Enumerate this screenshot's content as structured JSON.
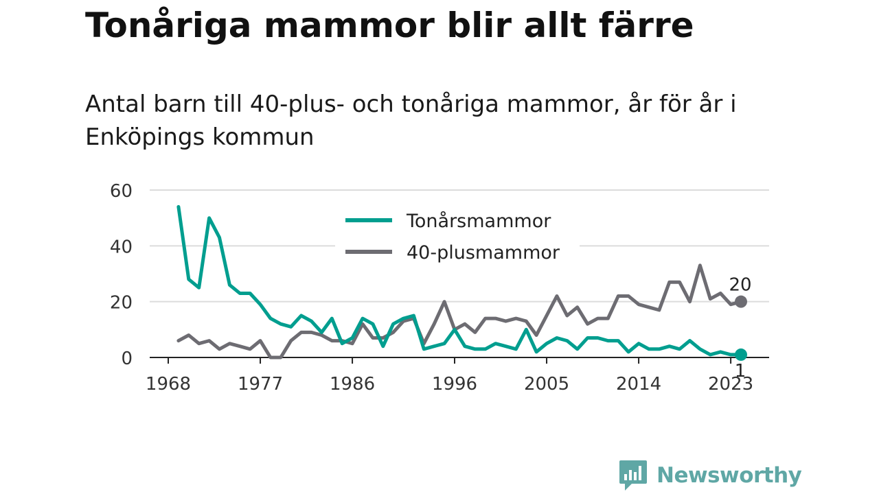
{
  "header": {
    "title": "Tonåriga mammor blir allt färre",
    "subtitle": "Antal barn till 40-plus- och tonåriga mammor, år för år i Enköpings kommun"
  },
  "brand": {
    "name": "Newsworthy",
    "icon": "newsworthy-logo-icon",
    "color": "#5fa7a5"
  },
  "chart_data": {
    "type": "line",
    "title": "Tonåriga mammor blir allt färre",
    "subtitle": "Antal barn till 40-plus- och tonåriga mammor, år för år i Enköpings kommun",
    "xlabel": "",
    "ylabel": "",
    "xlim": [
      1968,
      2024
    ],
    "ylim": [
      0,
      60
    ],
    "x_ticks": [
      1968,
      1977,
      1986,
      1996,
      2005,
      2014,
      2023
    ],
    "x_tick_labels": [
      "1968",
      "1977",
      "1986",
      "1996",
      "2005",
      "2014",
      "2023"
    ],
    "y_ticks": [
      0,
      20,
      40,
      60
    ],
    "y_tick_labels": [
      "0",
      "20",
      "40",
      "60"
    ],
    "grid": "horizontal",
    "legend": "top-center",
    "x": [
      1969,
      1970,
      1971,
      1972,
      1973,
      1974,
      1975,
      1976,
      1977,
      1978,
      1979,
      1980,
      1981,
      1982,
      1983,
      1984,
      1985,
      1986,
      1987,
      1988,
      1989,
      1990,
      1991,
      1992,
      1993,
      1994,
      1995,
      1996,
      1997,
      1998,
      1999,
      2000,
      2001,
      2002,
      2003,
      2004,
      2005,
      2006,
      2007,
      2008,
      2009,
      2010,
      2011,
      2012,
      2013,
      2014,
      2015,
      2016,
      2017,
      2018,
      2019,
      2020,
      2021,
      2022,
      2023,
      2024
    ],
    "series": [
      {
        "name": "Tonårsmammor",
        "color": "#009e8f",
        "values": [
          54,
          28,
          25,
          50,
          43,
          26,
          23,
          23,
          19,
          14,
          12,
          11,
          15,
          13,
          9,
          14,
          5,
          7,
          14,
          12,
          4,
          12,
          14,
          15,
          3,
          4,
          5,
          10,
          4,
          3,
          3,
          5,
          4,
          3,
          10,
          2,
          5,
          7,
          6,
          3,
          7,
          7,
          6,
          6,
          2,
          5,
          3,
          3,
          4,
          3,
          6,
          3,
          1,
          2,
          1,
          1
        ],
        "end_label": "1"
      },
      {
        "name": "40-plusmammor",
        "color": "#6d6c72",
        "values": [
          6,
          8,
          5,
          6,
          3,
          5,
          4,
          3,
          6,
          0,
          0,
          6,
          9,
          9,
          8,
          6,
          6,
          5,
          12,
          7,
          7,
          9,
          13,
          14,
          5,
          12,
          20,
          10,
          12,
          9,
          14,
          14,
          13,
          14,
          13,
          8,
          15,
          22,
          15,
          18,
          12,
          14,
          14,
          22,
          22,
          19,
          18,
          17,
          27,
          27,
          20,
          33,
          21,
          23,
          19,
          20
        ],
        "end_label": "20"
      }
    ]
  }
}
